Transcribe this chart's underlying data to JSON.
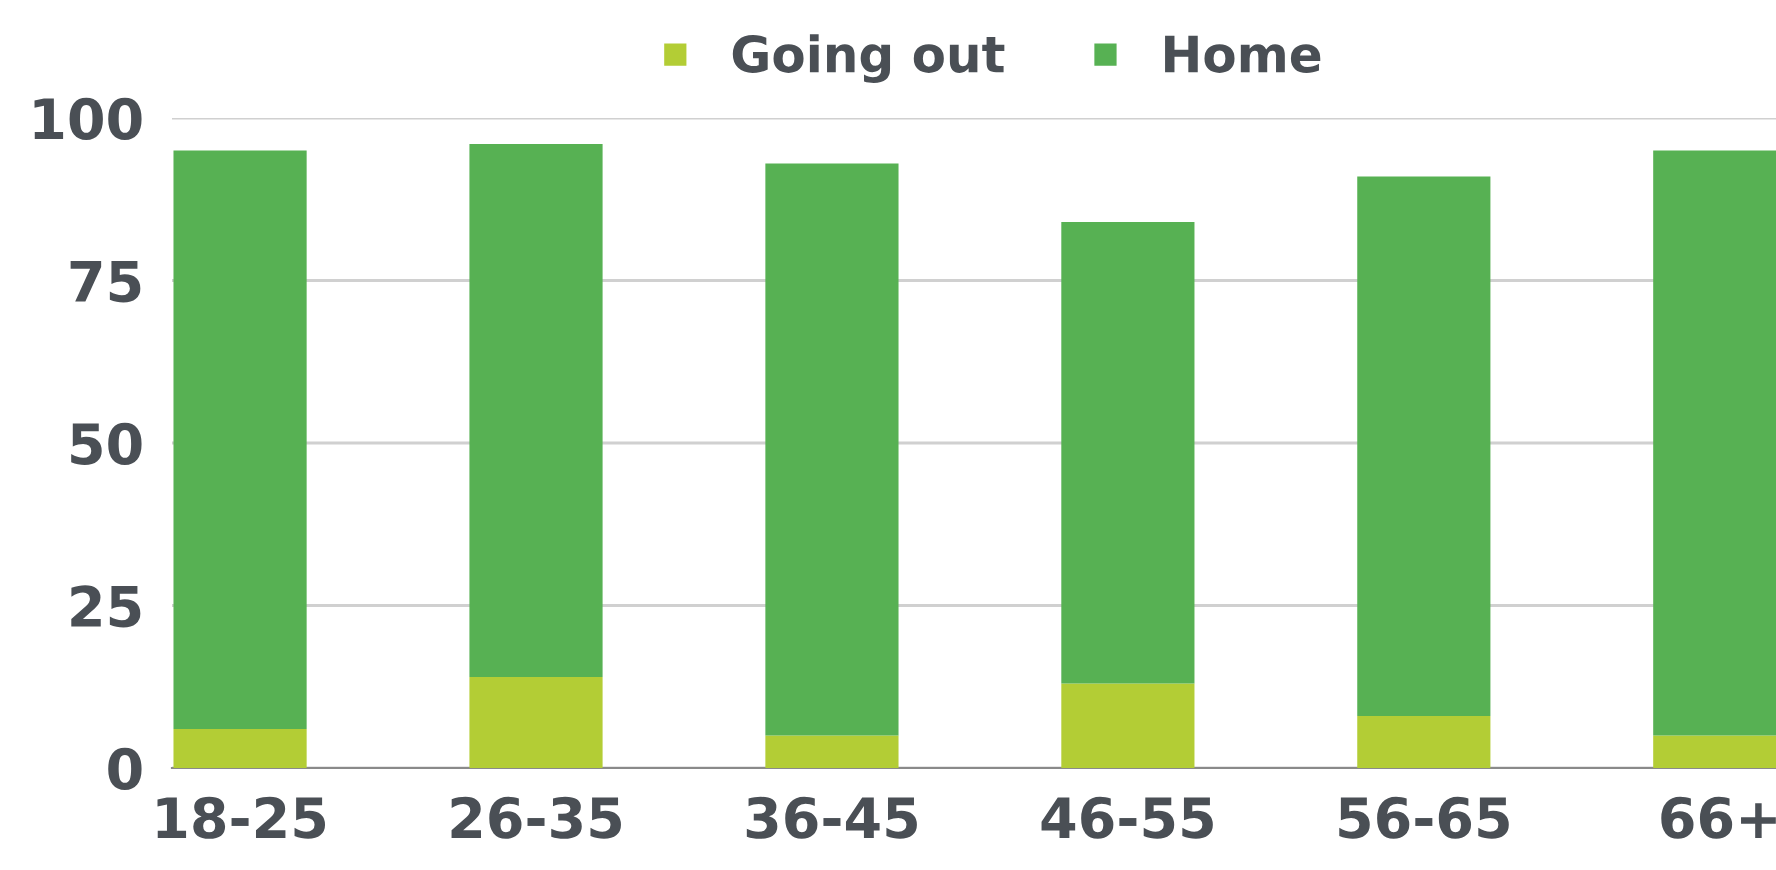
{
  "chart_data": {
    "type": "bar",
    "stacked": true,
    "categories": [
      "18-25",
      "26-35",
      "36-45",
      "46-55",
      "56-65",
      "66+"
    ],
    "series": [
      {
        "name": "Going out",
        "color": "#b3cd35",
        "values": [
          6,
          14,
          5,
          13,
          8,
          5
        ]
      },
      {
        "name": "Home",
        "color": "#57b153",
        "values": [
          89,
          82,
          88,
          71,
          83,
          90
        ]
      }
    ],
    "ylim": [
      0,
      100
    ],
    "yticks": [
      0,
      25,
      50,
      75,
      100
    ],
    "grid": "y",
    "legend": "top"
  }
}
